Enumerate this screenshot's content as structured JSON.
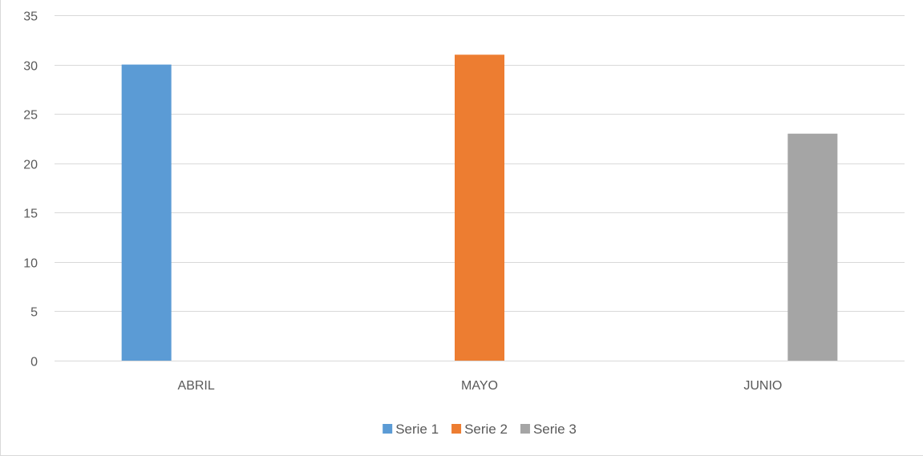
{
  "chart_data": {
    "type": "bar",
    "title": "",
    "xlabel": "",
    "ylabel": "",
    "categories": [
      "ABRIL",
      "MAYO",
      "JUNIO"
    ],
    "series": [
      {
        "name": "Serie 1",
        "color": "#5b9bd5",
        "values": [
          30,
          null,
          null
        ]
      },
      {
        "name": "Serie 2",
        "color": "#ed7d31",
        "values": [
          null,
          31,
          null
        ]
      },
      {
        "name": "Serie 3",
        "color": "#a5a5a5",
        "values": [
          null,
          null,
          23
        ]
      }
    ],
    "ylim": [
      0,
      35
    ],
    "yticks": [
      0,
      5,
      10,
      15,
      20,
      25,
      30,
      35
    ],
    "grid": true,
    "legend_position": "bottom"
  }
}
